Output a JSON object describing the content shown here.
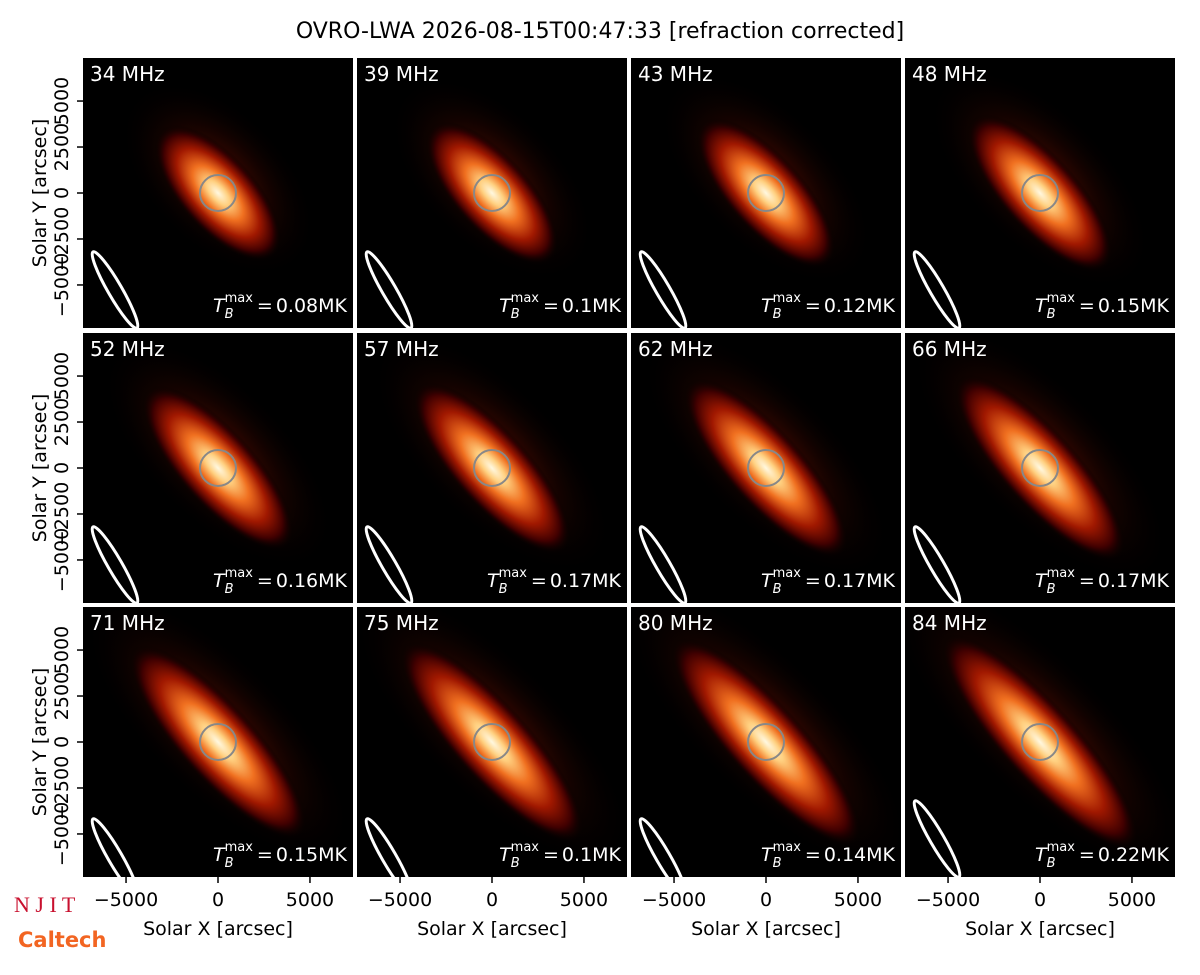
{
  "chart_data": {
    "type": "image",
    "title": "OVRO-LWA 2026-08-15T00:47:33 [refraction corrected]",
    "xlabel": "Solar X [arcsec]",
    "ylabel": "Solar Y [arcsec]",
    "xlim": [
      -7340,
      7340
    ],
    "ylim": [
      -7340,
      7340
    ],
    "xticks": [
      {
        "value": -5000,
        "label": "−5000"
      },
      0,
      5000
    ],
    "yticks": [
      {
        "value": -5000,
        "label": "−5000"
      },
      {
        "value": -2500,
        "label": "−2500"
      },
      0,
      2500,
      5000
    ],
    "tb_symbol": {
      "base": "T",
      "sub": "B",
      "sup": "max",
      "eq": "="
    },
    "panels": [
      {
        "label": "34 MHz",
        "tb": "0.08MK"
      },
      {
        "label": "39 MHz",
        "tb": "0.1MK"
      },
      {
        "label": "43 MHz",
        "tb": "0.12MK"
      },
      {
        "label": "48 MHz",
        "tb": "0.15MK"
      },
      {
        "label": "52 MHz",
        "tb": "0.16MK"
      },
      {
        "label": "57 MHz",
        "tb": "0.17MK"
      },
      {
        "label": "62 MHz",
        "tb": "0.17MK"
      },
      {
        "label": "66 MHz",
        "tb": "0.17MK"
      },
      {
        "label": "71 MHz",
        "tb": "0.15MK"
      },
      {
        "label": "75 MHz",
        "tb": "0.1MK"
      },
      {
        "label": "80 MHz",
        "tb": "0.14MK"
      },
      {
        "label": "84 MHz",
        "tb": "0.22MK"
      }
    ]
  },
  "logos": {
    "njit": "N J I T",
    "caltech": "Caltech"
  }
}
